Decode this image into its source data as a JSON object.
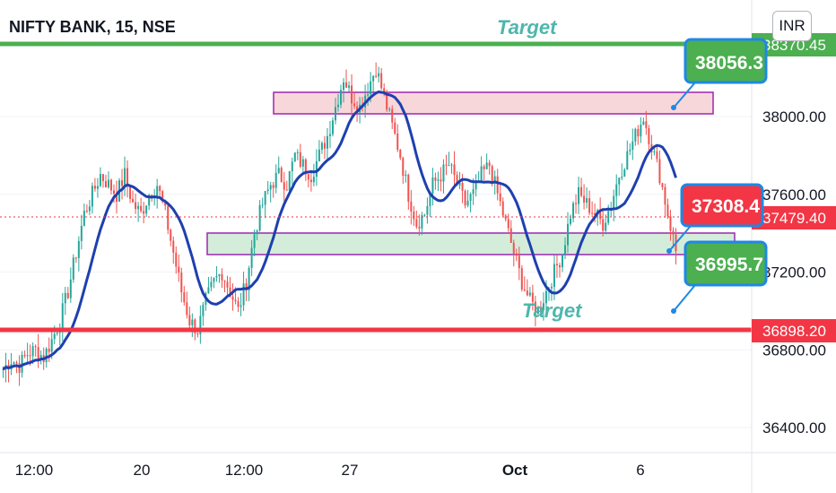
{
  "header": {
    "title": "NIFTY BANK, 15, NSE",
    "currency": "INR"
  },
  "annotations": {
    "target_top": "Target",
    "target_bottom": "Target"
  },
  "callouts": {
    "upper": "38056.3",
    "lower": "36995.7"
  },
  "price_tags": {
    "resistance": "38370.45",
    "current_red": "37308.4",
    "last": "37479.40",
    "support": "36898.20"
  },
  "colors": {
    "up": "#26a69a",
    "down": "#ef5350",
    "ma": "#1e40af",
    "green_line": "#4caf50",
    "red_line": "#f23645",
    "callout_green": "#4caf50",
    "callout_border": "#1e88e5",
    "zone_pink": "#f8d7da",
    "zone_green": "#d4edda",
    "zone_border": "#9c27b0"
  },
  "chart_data": {
    "type": "candlestick",
    "y_ticks": [
      "38000.00",
      "37600.00",
      "37200.00",
      "36800.00",
      "36400.00"
    ],
    "x_ticks": [
      "12:00",
      "20",
      "12:00",
      "27",
      "Oct",
      "6"
    ],
    "ylim": [
      36200,
      38450
    ],
    "levels": {
      "resistance": 38370.45,
      "support": 36898.2,
      "last": 37479.4
    },
    "zones": [
      {
        "name": "resistance zone",
        "low": 38050,
        "high": 38150
      },
      {
        "name": "support zone",
        "low": 37300,
        "high": 37400
      }
    ],
    "close_path": [
      36700,
      36750,
      36720,
      36780,
      36800,
      36760,
      36850,
      36950,
      37100,
      37300,
      37500,
      37600,
      37700,
      37650,
      37600,
      37700,
      37550,
      37500,
      37600,
      37650,
      37500,
      37300,
      37100,
      36950,
      36900,
      37050,
      37150,
      37200,
      37100,
      37000,
      37150,
      37400,
      37550,
      37650,
      37700,
      37650,
      37800,
      37750,
      37700,
      37800,
      37900,
      38050,
      38200,
      38100,
      38050,
      38150,
      38250,
      38100,
      37950,
      37800,
      37600,
      37450,
      37500,
      37650,
      37700,
      37750,
      37650,
      37550,
      37600,
      37700,
      37750,
      37600,
      37450,
      37300,
      37150,
      37050,
      37000,
      37100,
      37200,
      37300,
      37500,
      37600,
      37550,
      37500,
      37450,
      37550,
      37700,
      37800,
      37900,
      38000,
      37850,
      37700,
      37500,
      37308
    ]
  }
}
